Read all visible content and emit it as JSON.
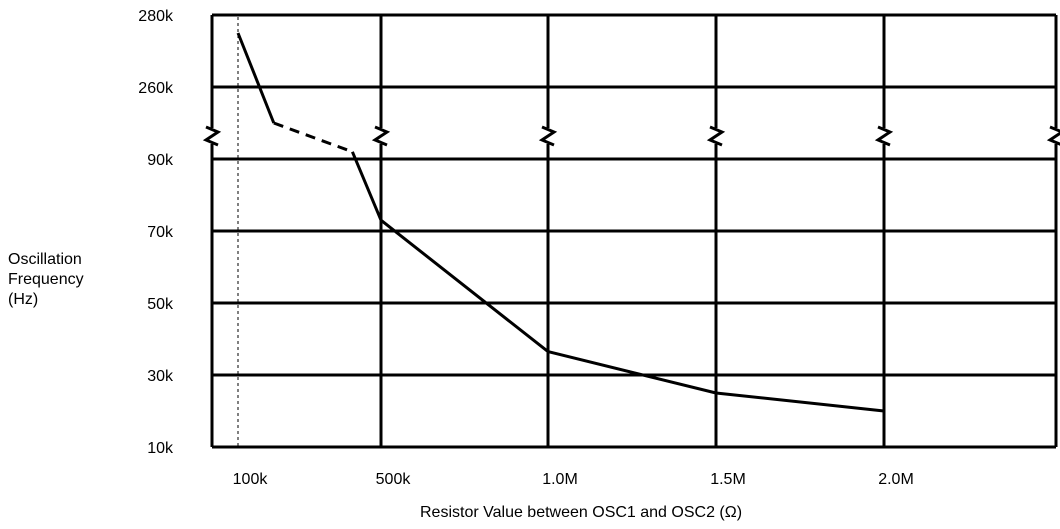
{
  "chart_data": {
    "type": "line",
    "title": "",
    "xlabel": "Resistor Value between OSC1 and OSC2 (Ω)",
    "ylabel_lines": [
      "Oscillation",
      "Frequency",
      "(Hz)"
    ],
    "x_tick_labels": [
      "100k",
      "500k",
      "1.0M",
      "1.5M",
      "2.0M"
    ],
    "y_tick_labels": [
      "280k",
      "260k",
      "90k",
      "70k",
      "50k",
      "30k",
      "10k"
    ],
    "y_scale_note": "broken axis between 260k and 90k",
    "grid": true,
    "reference_line_x": "100k",
    "series": [
      {
        "style": "solid",
        "points": [
          {
            "x": "100k",
            "y": 275000
          },
          {
            "x": "200k",
            "y": 250000
          }
        ]
      },
      {
        "style": "dashed",
        "points": [
          {
            "x": "200k",
            "y": 250000
          },
          {
            "x": "420k",
            "y": 92000
          }
        ]
      },
      {
        "style": "solid",
        "points": [
          {
            "x": "420k",
            "y": 92000
          },
          {
            "x": "500k",
            "y": 73000
          },
          {
            "x": "1.0M",
            "y": 36500
          },
          {
            "x": "1.5M",
            "y": 25000
          },
          {
            "x": "2.0M",
            "y": 20000
          }
        ]
      }
    ]
  }
}
